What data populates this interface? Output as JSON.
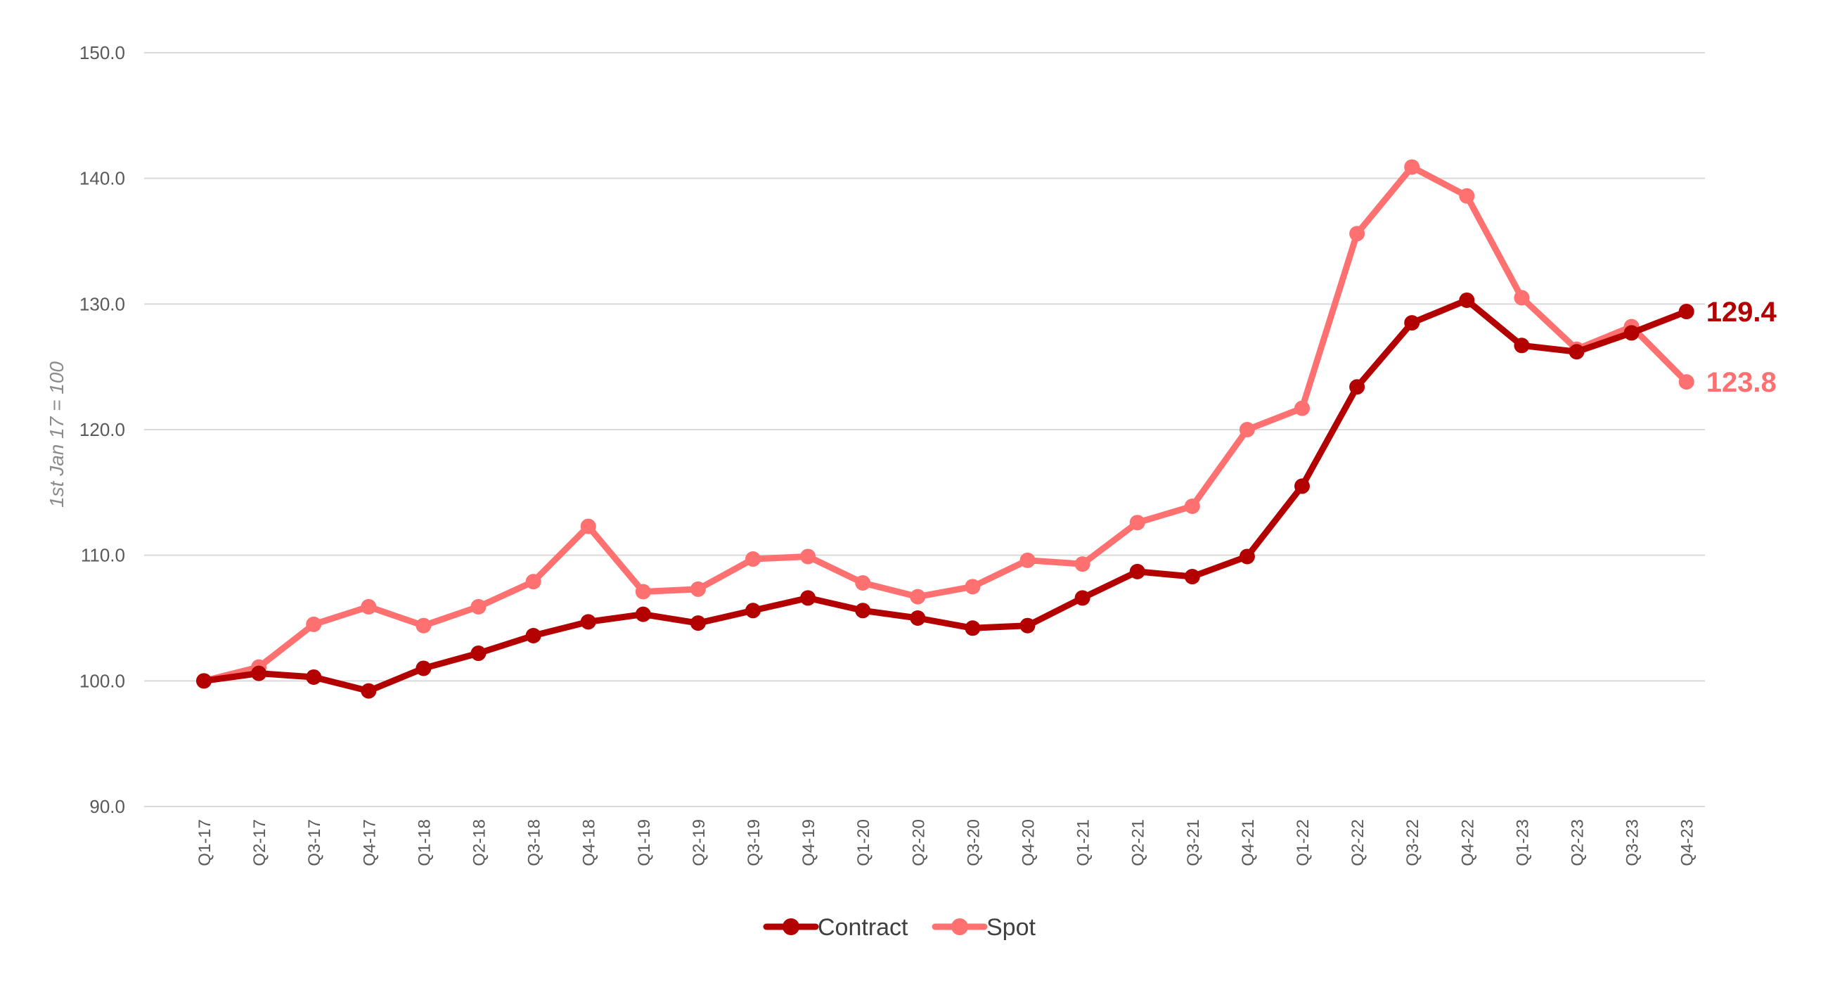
{
  "chart_data": {
    "type": "line",
    "title": "",
    "xlabel": "",
    "ylabel": "1st Jan 17 = 100",
    "ylim": [
      90,
      150
    ],
    "yticks": [
      90,
      100,
      110,
      120,
      130,
      140,
      150
    ],
    "ytick_labels": [
      "90.0",
      "100.0",
      "110.0",
      "120.0",
      "130.0",
      "140.0",
      "150.0"
    ],
    "grid": true,
    "legend_position": "bottom",
    "categories": [
      "Q1-17",
      "Q2-17",
      "Q3-17",
      "Q4-17",
      "Q1-18",
      "Q2-18",
      "Q3-18",
      "Q4-18",
      "Q1-19",
      "Q2-19",
      "Q3-19",
      "Q4-19",
      "Q1-20",
      "Q2-20",
      "Q3-20",
      "Q4-20",
      "Q1-21",
      "Q2-21",
      "Q3-21",
      "Q4-21",
      "Q1-22",
      "Q2-22",
      "Q3-22",
      "Q4-22",
      "Q1-23",
      "Q2-23",
      "Q3-23",
      "Q4-23"
    ],
    "series": [
      {
        "name": "Contract",
        "color": "#b30000",
        "values": [
          100.0,
          100.6,
          100.3,
          99.2,
          101.0,
          102.2,
          103.6,
          104.7,
          105.3,
          104.6,
          105.6,
          106.6,
          105.6,
          105.0,
          104.2,
          104.4,
          106.6,
          108.7,
          108.3,
          109.9,
          115.5,
          123.4,
          128.5,
          130.3,
          126.7,
          126.2,
          127.7,
          129.4
        ],
        "end_label": "129.4"
      },
      {
        "name": "Spot",
        "color": "#ff7070",
        "values": [
          100.0,
          101.1,
          104.5,
          105.9,
          104.4,
          105.9,
          107.9,
          112.3,
          107.1,
          107.3,
          109.7,
          109.9,
          107.8,
          106.7,
          107.5,
          109.6,
          109.3,
          112.6,
          113.9,
          120.0,
          121.7,
          135.6,
          140.9,
          138.6,
          130.5,
          126.4,
          128.2,
          123.8
        ],
        "end_label": "123.8"
      }
    ]
  }
}
